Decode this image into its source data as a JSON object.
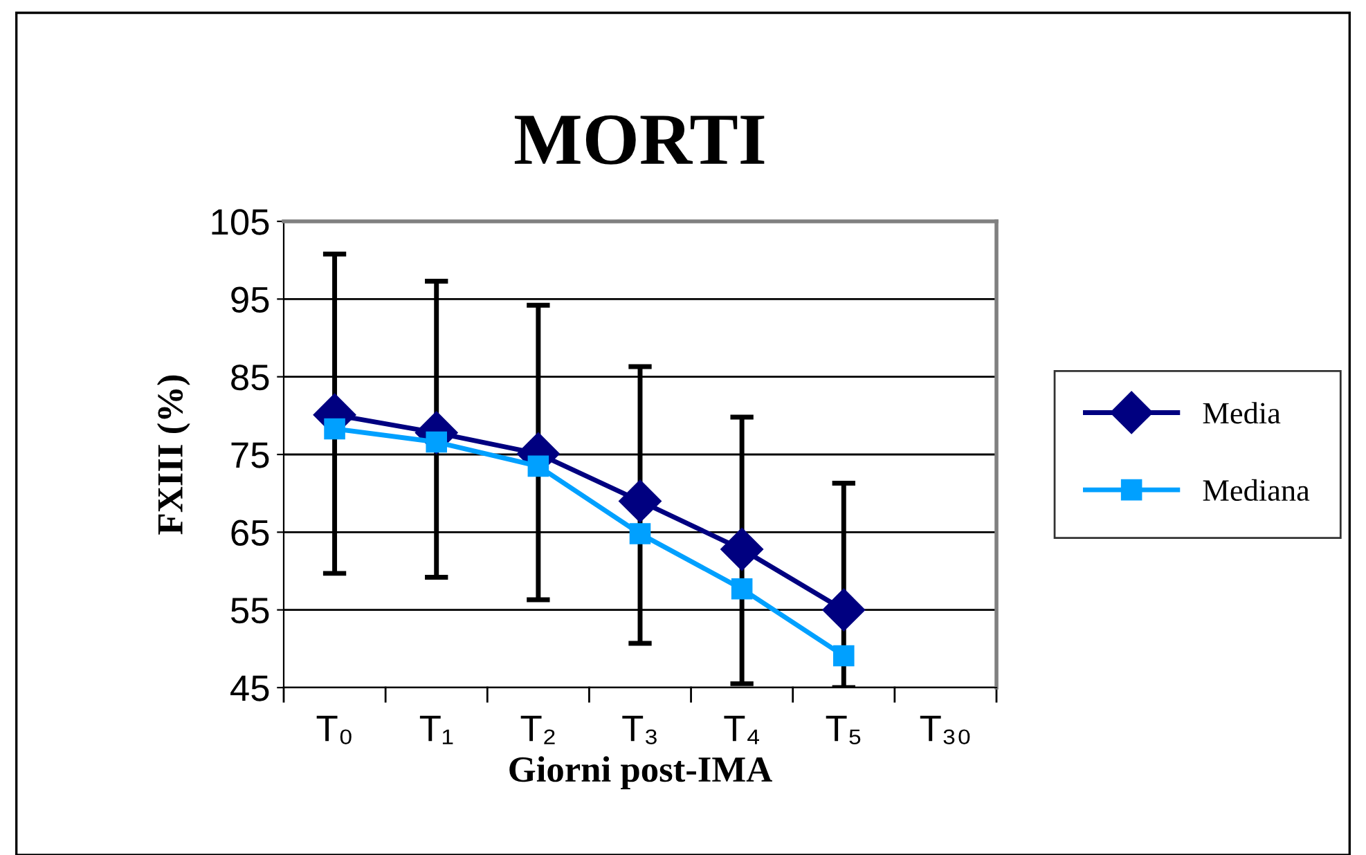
{
  "chart_data": {
    "type": "line",
    "title": "MORTI",
    "xlabel": "Giorni post-IMA",
    "ylabel": "FXIII (%)",
    "categories": [
      "T₀",
      "T₁",
      "T₂",
      "T₃",
      "T₄",
      "T₅",
      "T₃₀"
    ],
    "series": [
      {
        "name": "Media",
        "color": "#000080",
        "marker": "diamond",
        "values": [
          80.1,
          77.8,
          75.1,
          69.0,
          62.8,
          55.0,
          null
        ],
        "errors": [
          [
            59.7,
            100.8
          ],
          [
            59.2,
            97.3
          ],
          [
            56.3,
            94.2
          ],
          [
            50.7,
            86.3
          ],
          [
            45.5,
            79.8
          ],
          [
            45,
            71.3
          ],
          null
        ]
      },
      {
        "name": "Mediana",
        "color": "#00a0ff",
        "marker": "square",
        "values": [
          78.3,
          76.6,
          73.5,
          64.8,
          57.7,
          49.1,
          null
        ]
      }
    ],
    "ylim": [
      45,
      105
    ],
    "yticks": [
      45,
      55,
      65,
      75,
      85,
      95,
      105
    ],
    "grid": "y",
    "legend": "right"
  }
}
